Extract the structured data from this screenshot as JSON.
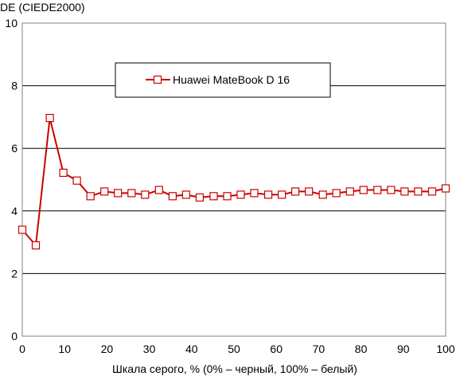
{
  "chart_data": {
    "type": "line",
    "title": "",
    "ylabel": "DE (CIEDE2000)",
    "xlabel": "Шкала серого, % (0% – черный, 100% – белый)",
    "xlim": [
      0,
      100
    ],
    "ylim": [
      0,
      10
    ],
    "xticks": [
      "0",
      "10",
      "20",
      "30",
      "40",
      "50",
      "60",
      "70",
      "80",
      "90",
      "100"
    ],
    "yticks": [
      "0",
      "2",
      "4",
      "6",
      "8",
      "10"
    ],
    "grid": "horizontal",
    "legend_position": "top-center",
    "series": [
      {
        "name": "Huawei MateBook D 16",
        "color": "#cc0000",
        "marker": "square",
        "x": [
          0,
          3.2,
          6.5,
          9.7,
          12.9,
          16.1,
          19.4,
          22.6,
          25.8,
          29,
          32.3,
          35.5,
          38.7,
          41.9,
          45.2,
          48.4,
          51.6,
          54.8,
          58.1,
          61.3,
          64.5,
          67.7,
          71,
          74.2,
          77.4,
          80.6,
          83.9,
          87.1,
          90.3,
          93.5,
          96.8,
          100
        ],
        "y": [
          3.4,
          2.9,
          6.97,
          5.22,
          4.97,
          4.47,
          4.62,
          4.57,
          4.57,
          4.52,
          4.67,
          4.47,
          4.52,
          4.43,
          4.47,
          4.47,
          4.52,
          4.57,
          4.52,
          4.52,
          4.62,
          4.62,
          4.52,
          4.57,
          4.62,
          4.67,
          4.67,
          4.67,
          4.62,
          4.62,
          4.62,
          4.72
        ]
      }
    ]
  }
}
